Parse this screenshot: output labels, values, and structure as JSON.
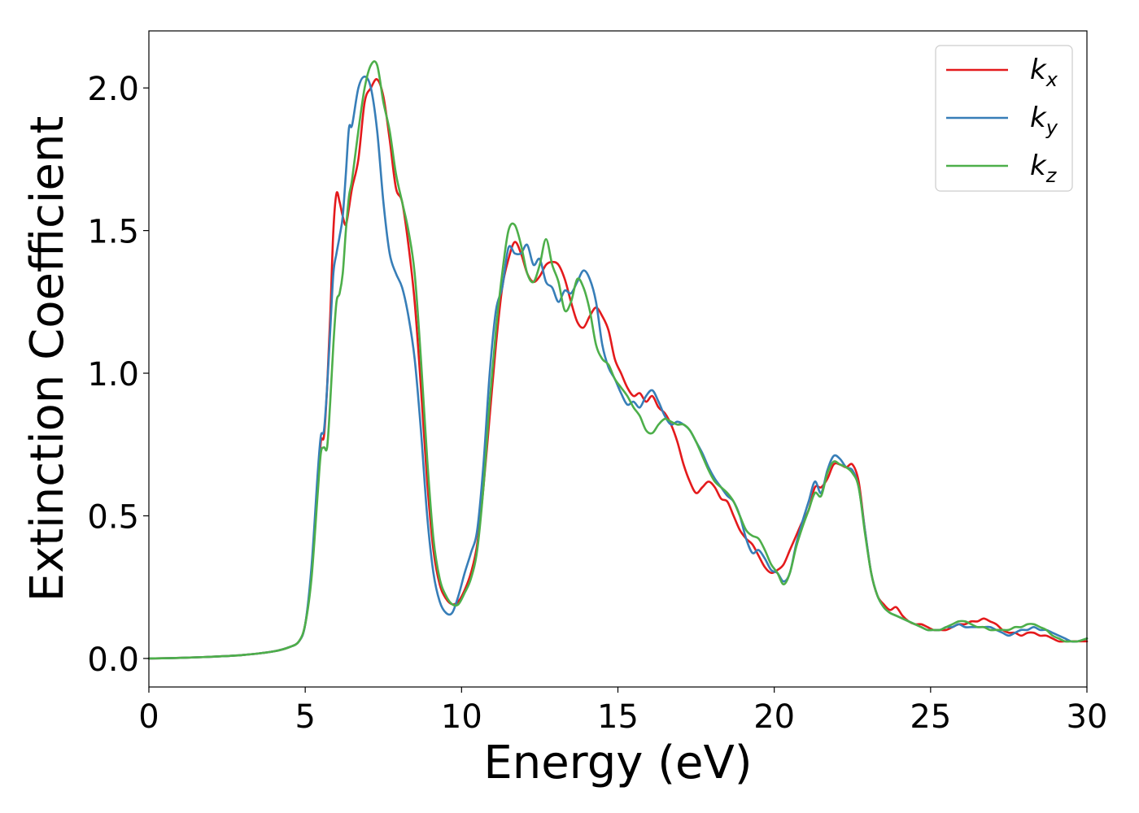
{
  "chart_data": {
    "type": "line",
    "xlabel": "Energy (eV)",
    "ylabel": "Extinction Coefficient",
    "xlim": [
      0,
      30
    ],
    "ylim": [
      -0.1,
      2.2
    ],
    "xticks": [
      0,
      5,
      10,
      15,
      20,
      25,
      30
    ],
    "xtick_labels": [
      "0",
      "5",
      "10",
      "15",
      "20",
      "25",
      "30"
    ],
    "yticks": [
      0.0,
      0.5,
      1.0,
      1.5,
      2.0
    ],
    "ytick_labels": [
      "0.0",
      "0.5",
      "1.0",
      "1.5",
      "2.0"
    ],
    "grid": false,
    "legend_position": "top-right",
    "series": [
      {
        "name": "k_x",
        "label_main": "k",
        "label_sub": "x",
        "color": "#e41a1c",
        "x": [
          0,
          1,
          2,
          3,
          4,
          4.5,
          4.8,
          5.0,
          5.2,
          5.4,
          5.5,
          5.6,
          5.7,
          5.8,
          5.9,
          6.0,
          6.1,
          6.2,
          6.3,
          6.4,
          6.5,
          6.7,
          6.9,
          7.1,
          7.3,
          7.5,
          7.7,
          7.9,
          8.1,
          8.3,
          8.5,
          8.7,
          8.9,
          9.1,
          9.3,
          9.5,
          9.7,
          9.9,
          10.1,
          10.3,
          10.5,
          10.7,
          10.9,
          11.1,
          11.3,
          11.5,
          11.7,
          11.9,
          12.1,
          12.3,
          12.5,
          12.7,
          12.9,
          13.1,
          13.3,
          13.5,
          13.7,
          13.9,
          14.1,
          14.3,
          14.5,
          14.7,
          14.9,
          15.1,
          15.3,
          15.5,
          15.7,
          15.9,
          16.1,
          16.3,
          16.5,
          16.7,
          16.9,
          17.1,
          17.3,
          17.5,
          17.7,
          17.9,
          18.1,
          18.3,
          18.5,
          18.7,
          18.9,
          19.1,
          19.3,
          19.5,
          19.7,
          19.9,
          20.1,
          20.3,
          20.5,
          20.7,
          20.9,
          21.1,
          21.3,
          21.5,
          21.7,
          21.9,
          22.1,
          22.3,
          22.5,
          22.7,
          22.9,
          23.1,
          23.3,
          23.5,
          23.7,
          23.9,
          24.1,
          24.3,
          24.5,
          24.7,
          24.9,
          25.1,
          25.3,
          25.5,
          25.7,
          25.9,
          26.1,
          26.3,
          26.5,
          26.7,
          26.9,
          27.1,
          27.3,
          27.5,
          27.7,
          27.9,
          28.1,
          28.3,
          28.5,
          28.7,
          28.9,
          29.1,
          29.3,
          29.5,
          29.7,
          30
        ],
        "y": [
          0.0,
          0.002,
          0.006,
          0.012,
          0.025,
          0.04,
          0.06,
          0.12,
          0.3,
          0.6,
          0.76,
          0.78,
          0.95,
          1.2,
          1.5,
          1.63,
          1.6,
          1.55,
          1.52,
          1.58,
          1.65,
          1.75,
          1.95,
          2.0,
          2.03,
          1.97,
          1.82,
          1.65,
          1.6,
          1.45,
          1.25,
          0.95,
          0.62,
          0.38,
          0.26,
          0.21,
          0.19,
          0.2,
          0.24,
          0.3,
          0.4,
          0.6,
          0.85,
          1.1,
          1.3,
          1.4,
          1.46,
          1.42,
          1.35,
          1.32,
          1.34,
          1.38,
          1.39,
          1.38,
          1.33,
          1.25,
          1.18,
          1.16,
          1.2,
          1.23,
          1.2,
          1.15,
          1.05,
          1.0,
          0.95,
          0.92,
          0.93,
          0.9,
          0.92,
          0.88,
          0.86,
          0.82,
          0.76,
          0.68,
          0.62,
          0.58,
          0.6,
          0.62,
          0.6,
          0.56,
          0.55,
          0.5,
          0.45,
          0.42,
          0.4,
          0.36,
          0.32,
          0.3,
          0.31,
          0.33,
          0.38,
          0.43,
          0.48,
          0.52,
          0.6,
          0.6,
          0.63,
          0.68,
          0.68,
          0.67,
          0.68,
          0.62,
          0.45,
          0.3,
          0.22,
          0.19,
          0.17,
          0.18,
          0.15,
          0.13,
          0.12,
          0.12,
          0.11,
          0.1,
          0.1,
          0.1,
          0.11,
          0.12,
          0.12,
          0.13,
          0.13,
          0.14,
          0.13,
          0.12,
          0.1,
          0.09,
          0.09,
          0.08,
          0.09,
          0.09,
          0.08,
          0.08,
          0.07,
          0.06,
          0.06,
          0.06,
          0.06,
          0.06
        ],
        "comment": null
      },
      {
        "name": "k_y",
        "label_main": "k",
        "label_sub": "y",
        "color": "#377eb8",
        "x": [
          0,
          1,
          2,
          3,
          4,
          4.5,
          4.8,
          5.0,
          5.2,
          5.4,
          5.5,
          5.6,
          5.7,
          5.8,
          5.9,
          6.0,
          6.1,
          6.2,
          6.3,
          6.4,
          6.5,
          6.7,
          6.9,
          7.1,
          7.3,
          7.5,
          7.7,
          7.9,
          8.1,
          8.3,
          8.5,
          8.7,
          8.9,
          9.1,
          9.3,
          9.5,
          9.7,
          9.9,
          10.1,
          10.3,
          10.5,
          10.7,
          10.9,
          11.1,
          11.3,
          11.5,
          11.7,
          11.9,
          12.1,
          12.3,
          12.5,
          12.7,
          12.9,
          13.1,
          13.3,
          13.5,
          13.7,
          13.9,
          14.1,
          14.3,
          14.5,
          14.7,
          14.9,
          15.1,
          15.3,
          15.5,
          15.7,
          15.9,
          16.1,
          16.3,
          16.5,
          16.7,
          16.9,
          17.1,
          17.3,
          17.5,
          17.7,
          17.9,
          18.1,
          18.3,
          18.5,
          18.7,
          18.9,
          19.1,
          19.3,
          19.5,
          19.7,
          19.9,
          20.1,
          20.3,
          20.5,
          20.7,
          20.9,
          21.1,
          21.3,
          21.5,
          21.7,
          21.9,
          22.1,
          22.3,
          22.5,
          22.7,
          22.9,
          23.1,
          23.3,
          23.5,
          23.7,
          23.9,
          24.1,
          24.3,
          24.5,
          24.7,
          24.9,
          25.1,
          25.3,
          25.5,
          25.7,
          25.9,
          26.1,
          26.3,
          26.5,
          26.7,
          26.9,
          27.1,
          27.3,
          27.5,
          27.7,
          27.9,
          28.1,
          28.3,
          28.5,
          28.7,
          28.9,
          29.1,
          29.3,
          29.5,
          29.7,
          30
        ],
        "y": [
          0.0,
          0.002,
          0.006,
          0.012,
          0.025,
          0.04,
          0.06,
          0.12,
          0.32,
          0.65,
          0.78,
          0.8,
          0.95,
          1.15,
          1.35,
          1.42,
          1.48,
          1.55,
          1.7,
          1.86,
          1.87,
          2.0,
          2.04,
          2.0,
          1.85,
          1.6,
          1.42,
          1.35,
          1.3,
          1.2,
          1.05,
          0.8,
          0.5,
          0.3,
          0.2,
          0.16,
          0.16,
          0.22,
          0.3,
          0.37,
          0.45,
          0.68,
          1.0,
          1.22,
          1.3,
          1.44,
          1.42,
          1.42,
          1.45,
          1.38,
          1.4,
          1.32,
          1.3,
          1.25,
          1.29,
          1.28,
          1.32,
          1.36,
          1.33,
          1.25,
          1.1,
          1.02,
          0.98,
          0.93,
          0.89,
          0.9,
          0.88,
          0.92,
          0.94,
          0.9,
          0.85,
          0.82,
          0.83,
          0.82,
          0.8,
          0.76,
          0.72,
          0.67,
          0.63,
          0.6,
          0.57,
          0.55,
          0.5,
          0.42,
          0.37,
          0.38,
          0.35,
          0.31,
          0.3,
          0.27,
          0.3,
          0.4,
          0.48,
          0.55,
          0.62,
          0.58,
          0.66,
          0.71,
          0.7,
          0.67,
          0.66,
          0.6,
          0.45,
          0.3,
          0.22,
          0.18,
          0.16,
          0.15,
          0.14,
          0.13,
          0.12,
          0.11,
          0.1,
          0.1,
          0.1,
          0.11,
          0.11,
          0.12,
          0.11,
          0.11,
          0.11,
          0.11,
          0.11,
          0.1,
          0.09,
          0.08,
          0.09,
          0.1,
          0.1,
          0.11,
          0.1,
          0.1,
          0.09,
          0.08,
          0.07,
          0.06,
          0.06,
          0.07
        ],
        "comment": null
      },
      {
        "name": "k_z",
        "label_main": "k",
        "label_sub": "z",
        "color": "#4daf4a",
        "x": [
          0,
          1,
          2,
          3,
          4,
          4.5,
          4.8,
          5.0,
          5.2,
          5.4,
          5.5,
          5.6,
          5.7,
          5.8,
          5.9,
          6.0,
          6.1,
          6.2,
          6.3,
          6.4,
          6.5,
          6.7,
          6.9,
          7.1,
          7.3,
          7.5,
          7.7,
          7.9,
          8.1,
          8.3,
          8.5,
          8.7,
          8.9,
          9.1,
          9.3,
          9.5,
          9.7,
          9.9,
          10.1,
          10.3,
          10.5,
          10.7,
          10.9,
          11.1,
          11.3,
          11.5,
          11.7,
          11.9,
          12.1,
          12.3,
          12.5,
          12.7,
          12.9,
          13.1,
          13.3,
          13.5,
          13.7,
          13.9,
          14.1,
          14.3,
          14.5,
          14.7,
          14.9,
          15.1,
          15.3,
          15.5,
          15.7,
          15.9,
          16.1,
          16.3,
          16.5,
          16.7,
          16.9,
          17.1,
          17.3,
          17.5,
          17.7,
          17.9,
          18.1,
          18.3,
          18.5,
          18.7,
          18.9,
          19.1,
          19.3,
          19.5,
          19.7,
          19.9,
          20.1,
          20.3,
          20.5,
          20.7,
          20.9,
          21.1,
          21.3,
          21.5,
          21.7,
          21.9,
          22.1,
          22.3,
          22.5,
          22.7,
          22.9,
          23.1,
          23.3,
          23.5,
          23.7,
          23.9,
          24.1,
          24.3,
          24.5,
          24.7,
          24.9,
          25.1,
          25.3,
          25.5,
          25.7,
          25.9,
          26.1,
          26.3,
          26.5,
          26.7,
          26.9,
          27.1,
          27.3,
          27.5,
          27.7,
          27.9,
          28.1,
          28.3,
          28.5,
          28.7,
          28.9,
          29.1,
          29.3,
          29.5,
          29.7,
          30
        ],
        "y": [
          0.0,
          0.002,
          0.006,
          0.012,
          0.025,
          0.04,
          0.06,
          0.12,
          0.28,
          0.58,
          0.72,
          0.74,
          0.74,
          0.9,
          1.1,
          1.25,
          1.28,
          1.35,
          1.5,
          1.62,
          1.68,
          1.85,
          2.0,
          2.08,
          2.08,
          1.95,
          1.85,
          1.7,
          1.6,
          1.5,
          1.35,
          1.05,
          0.7,
          0.42,
          0.28,
          0.22,
          0.19,
          0.19,
          0.23,
          0.28,
          0.38,
          0.6,
          0.9,
          1.15,
          1.35,
          1.5,
          1.52,
          1.45,
          1.35,
          1.32,
          1.38,
          1.47,
          1.38,
          1.32,
          1.22,
          1.25,
          1.33,
          1.3,
          1.22,
          1.1,
          1.05,
          1.03,
          0.98,
          0.95,
          0.92,
          0.88,
          0.85,
          0.8,
          0.79,
          0.82,
          0.84,
          0.83,
          0.82,
          0.82,
          0.8,
          0.76,
          0.71,
          0.66,
          0.62,
          0.6,
          0.58,
          0.55,
          0.5,
          0.45,
          0.43,
          0.42,
          0.38,
          0.33,
          0.3,
          0.26,
          0.3,
          0.39,
          0.46,
          0.52,
          0.58,
          0.57,
          0.65,
          0.69,
          0.68,
          0.67,
          0.65,
          0.6,
          0.44,
          0.3,
          0.22,
          0.18,
          0.16,
          0.15,
          0.14,
          0.13,
          0.12,
          0.11,
          0.1,
          0.1,
          0.1,
          0.11,
          0.12,
          0.13,
          0.13,
          0.12,
          0.11,
          0.11,
          0.1,
          0.1,
          0.1,
          0.1,
          0.11,
          0.11,
          0.12,
          0.12,
          0.11,
          0.1,
          0.08,
          0.07,
          0.06,
          0.06,
          0.06,
          0.07
        ],
        "comment": null
      }
    ]
  }
}
